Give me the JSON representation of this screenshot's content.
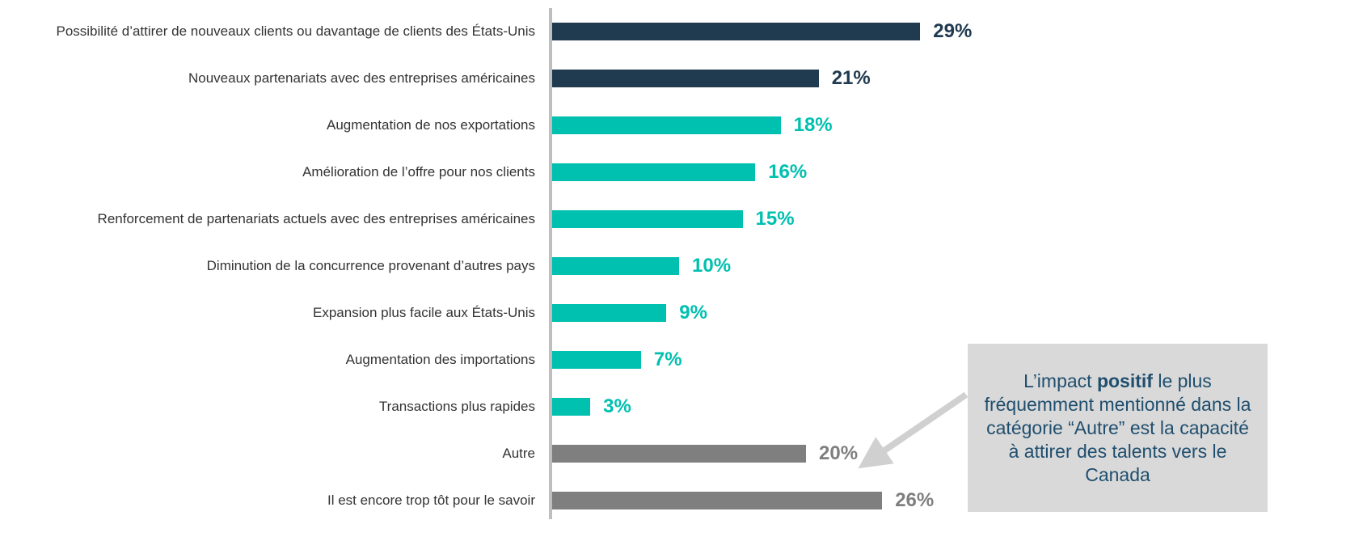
{
  "chart_data": {
    "type": "bar",
    "orientation": "horizontal",
    "categories": [
      "Possibilité d’attirer de nouveaux clients ou davantage de clients des États-Unis",
      "Nouveaux partenariats avec des entreprises américaines",
      "Augmentation de nos exportations",
      "Amélioration de l’offre pour nos clients",
      "Renforcement de partenariats actuels avec des entreprises américaines",
      "Diminution de la concurrence provenant d’autres pays",
      "Expansion plus facile aux États-Unis",
      "Augmentation des importations",
      "Transactions plus rapides",
      "Autre",
      "Il est encore trop tôt pour le savoir"
    ],
    "values": [
      29,
      21,
      18,
      16,
      15,
      10,
      9,
      7,
      3,
      20,
      26
    ],
    "value_labels": [
      "29%",
      "21%",
      "18%",
      "16%",
      "15%",
      "10%",
      "9%",
      "7%",
      "3%",
      "20%",
      "26%"
    ],
    "colors": [
      "#203a50",
      "#203a50",
      "#00c0b0",
      "#00c0b0",
      "#00c0b0",
      "#00c0b0",
      "#00c0b0",
      "#00c0b0",
      "#00c0b0",
      "#7f7f7f",
      "#7f7f7f"
    ],
    "xlim": [
      0,
      30
    ],
    "annotation": [
      "L’impact ",
      "positif",
      " le plus fréquemment mentionné dans la catégorie “Autre” est la capacité à attirer des talents vers le Canada"
    ]
  }
}
